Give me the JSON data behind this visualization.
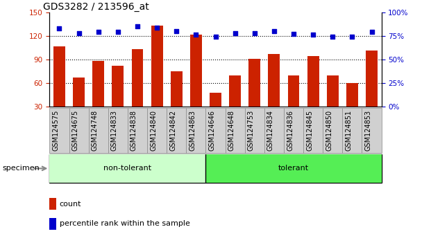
{
  "title": "GDS3282 / 213596_at",
  "categories": [
    "GSM124575",
    "GSM124675",
    "GSM124748",
    "GSM124833",
    "GSM124838",
    "GSM124840",
    "GSM124842",
    "GSM124863",
    "GSM124646",
    "GSM124648",
    "GSM124753",
    "GSM124834",
    "GSM124836",
    "GSM124845",
    "GSM124850",
    "GSM124851",
    "GSM124853"
  ],
  "bar_values": [
    107,
    67,
    88,
    82,
    103,
    133,
    75,
    122,
    48,
    70,
    91,
    97,
    70,
    94,
    70,
    60,
    101
  ],
  "scatter_values": [
    83,
    78,
    79,
    79,
    85,
    84,
    80,
    76,
    74,
    78,
    78,
    80,
    77,
    76,
    74,
    74,
    79
  ],
  "non_tolerant_count": 8,
  "tolerant_count": 9,
  "bar_color": "#cc2200",
  "scatter_color": "#0000cc",
  "ylim_left": [
    30,
    150
  ],
  "ylim_right": [
    0,
    100
  ],
  "yticks_left": [
    30,
    60,
    90,
    120,
    150
  ],
  "yticks_right": [
    0,
    25,
    50,
    75,
    100
  ],
  "grid_values": [
    60,
    90,
    120
  ],
  "non_tolerant_color": "#ccffcc",
  "tolerant_color": "#55ee55",
  "group_label_nontolerant": "non-tolerant",
  "group_label_tolerant": "tolerant",
  "specimen_label": "specimen",
  "legend_bar": "count",
  "legend_scatter": "percentile rank within the sample",
  "title_fontsize": 10,
  "tick_fontsize": 7.5,
  "label_fontsize": 7
}
